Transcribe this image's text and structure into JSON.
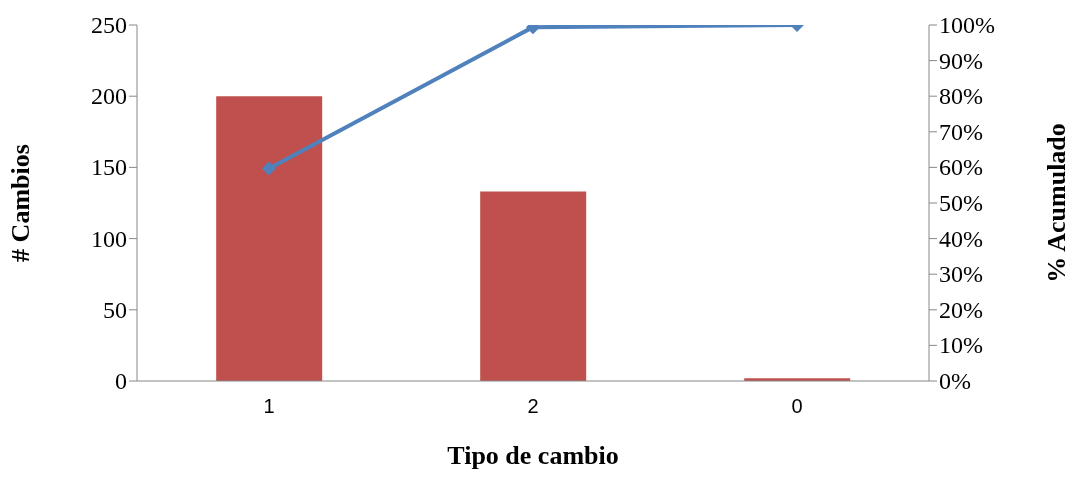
{
  "chart_data": {
    "type": "bar",
    "xlabel": "Tipo de cambio",
    "ylabel": "# Cambios",
    "y2label": "% Acumulado",
    "categories": [
      "1",
      "2",
      "0"
    ],
    "series": [
      {
        "color": "#c0504d",
        "values": [
          200,
          133,
          2
        ]
      },
      {
        "type": "line",
        "axis": "y2",
        "color": "#4f81bd",
        "values": [
          59.7,
          99.4,
          100
        ]
      }
    ],
    "ylim": [
      0,
      250
    ],
    "yticks": [
      0,
      50,
      100,
      150,
      200,
      250
    ],
    "y2lim": [
      0,
      100
    ],
    "y2ticks": [
      {
        "value": 0,
        "label": "0%"
      },
      {
        "value": 10,
        "label": "10%"
      },
      {
        "value": 20,
        "label": "20%"
      },
      {
        "value": 30,
        "label": "30%"
      },
      {
        "value": 40,
        "label": "40%"
      },
      {
        "value": 50,
        "label": "50%"
      },
      {
        "value": 60,
        "label": "60%"
      },
      {
        "value": 70,
        "label": "70%"
      },
      {
        "value": 80,
        "label": "80%"
      },
      {
        "value": 90,
        "label": "90%"
      },
      {
        "value": 100,
        "label": "100%"
      }
    ],
    "marker": "diamond",
    "grid": false,
    "legend": false
  }
}
